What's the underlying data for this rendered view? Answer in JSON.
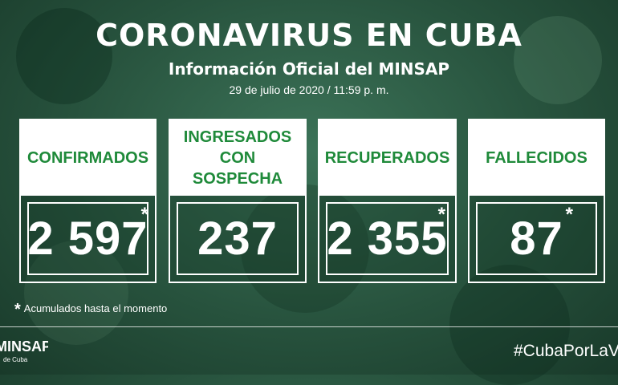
{
  "header": {
    "title": "CORONAVIRUS EN CUBA",
    "subtitle": "Información Oficial del MINSAP",
    "date": "29 de julio de 2020 / 11:59 p. m."
  },
  "cards": [
    {
      "label": "CONFIRMADOS",
      "value": "2 597",
      "asterisk": "*"
    },
    {
      "label": "INGRESADOS\nCON SOSPECHA",
      "value": "237",
      "asterisk": ""
    },
    {
      "label": "RECUPERADOS",
      "value": "2 355",
      "asterisk": "*"
    },
    {
      "label": "FALLECIDOS",
      "value": "87",
      "asterisk": "*"
    }
  ],
  "footnote": {
    "marker": "*",
    "text": "Acumulados hasta el momento"
  },
  "footer": {
    "logo_text": "MINSAP",
    "logo_subtext": "de Cuba",
    "hashtag": "#CubaPorLaVida"
  },
  "colors": {
    "background": "#27523d",
    "label_text": "#1f8a3a",
    "card_border": "#ffffff"
  }
}
